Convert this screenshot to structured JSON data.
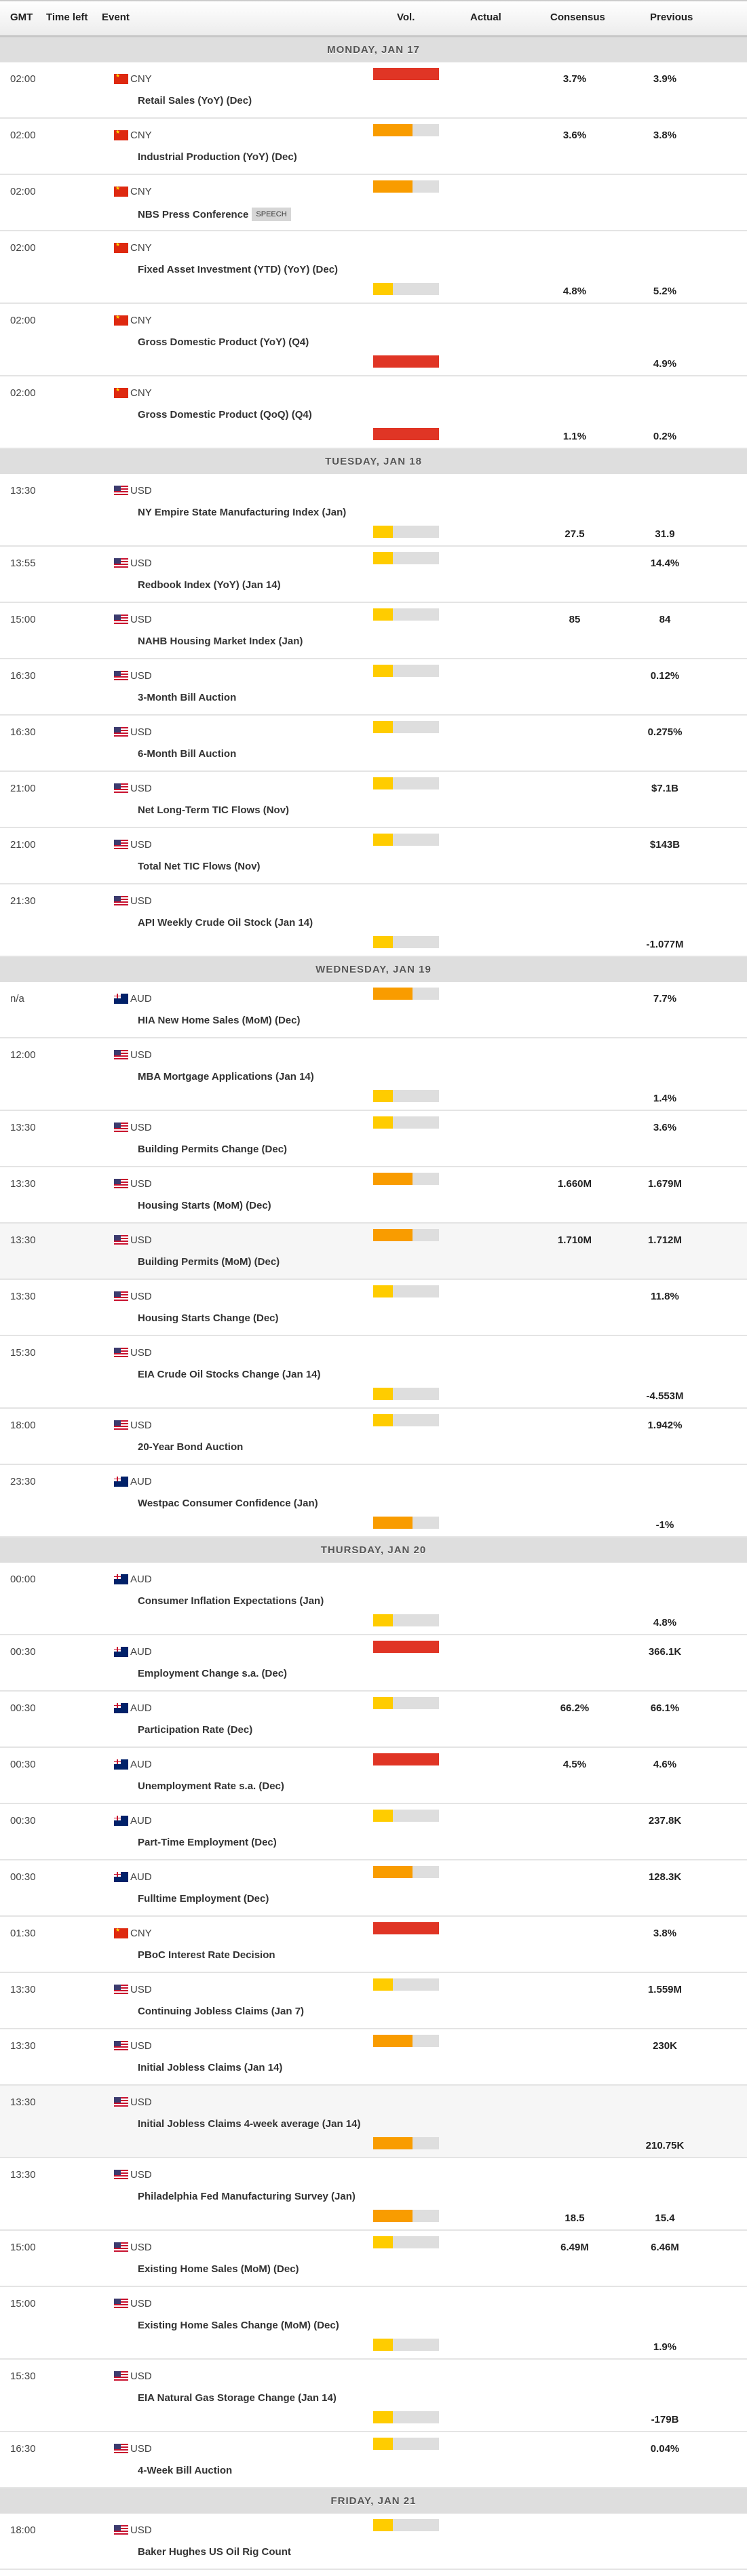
{
  "header": {
    "gmt": "GMT",
    "time_left": "Time left",
    "event": "Event",
    "vol": "Vol.",
    "actual": "Actual",
    "consensus": "Consensus",
    "previous": "Previous"
  },
  "colors": {
    "high": "#e03525",
    "medium": "#f99c00",
    "low": "#ffcc00",
    "track": "#dedede"
  },
  "volatility_levels": {
    "high": 1.0,
    "medium": 0.6,
    "low": 0.3
  },
  "days": [
    {
      "label": "MONDAY, JAN 17",
      "events": [
        {
          "time": "02:00",
          "currency": "CNY",
          "flag": "cny",
          "name": "Retail Sales (YoY) (Dec)",
          "vol": "high",
          "consensus": "3.7%",
          "previous": "3.9%"
        },
        {
          "time": "02:00",
          "currency": "CNY",
          "flag": "cny",
          "name": "Industrial Production (YoY) (Dec)",
          "vol": "medium",
          "consensus": "3.6%",
          "previous": "3.8%"
        },
        {
          "time": "02:00",
          "currency": "CNY",
          "flag": "cny",
          "name": "NBS Press Conference",
          "badge": "SPEECH",
          "vol": "medium"
        },
        {
          "time": "02:00",
          "currency": "CNY",
          "flag": "cny",
          "name": "Fixed Asset Investment (YTD) (YoY) (Dec)",
          "vol": "low",
          "consensus": "4.8%",
          "previous": "5.2%",
          "tall": true
        },
        {
          "time": "02:00",
          "currency": "CNY",
          "flag": "cny",
          "name": "Gross Domestic Product (YoY) (Q4)",
          "vol": "high",
          "previous": "4.9%",
          "tall": true
        },
        {
          "time": "02:00",
          "currency": "CNY",
          "flag": "cny",
          "name": "Gross Domestic Product (QoQ) (Q4)",
          "vol": "high",
          "consensus": "1.1%",
          "previous": "0.2%",
          "tall": true
        }
      ]
    },
    {
      "label": "TUESDAY, JAN 18",
      "events": [
        {
          "time": "13:30",
          "currency": "USD",
          "flag": "usd",
          "name": "NY Empire State Manufacturing Index (Jan)",
          "vol": "low",
          "consensus": "27.5",
          "previous": "31.9",
          "tall": true
        },
        {
          "time": "13:55",
          "currency": "USD",
          "flag": "usd",
          "name": "Redbook Index (YoY) (Jan 14)",
          "vol": "low",
          "previous": "14.4%"
        },
        {
          "time": "15:00",
          "currency": "USD",
          "flag": "usd",
          "name": "NAHB Housing Market Index (Jan)",
          "vol": "low",
          "consensus": "85",
          "previous": "84"
        },
        {
          "time": "16:30",
          "currency": "USD",
          "flag": "usd",
          "name": "3-Month Bill Auction",
          "vol": "low",
          "previous": "0.12%"
        },
        {
          "time": "16:30",
          "currency": "USD",
          "flag": "usd",
          "name": "6-Month Bill Auction",
          "vol": "low",
          "previous": "0.275%"
        },
        {
          "time": "21:00",
          "currency": "USD",
          "flag": "usd",
          "name": "Net Long-Term TIC Flows (Nov)",
          "vol": "low",
          "previous": "$7.1B"
        },
        {
          "time": "21:00",
          "currency": "USD",
          "flag": "usd",
          "name": "Total Net TIC Flows (Nov)",
          "vol": "low",
          "previous": "$143B"
        },
        {
          "time": "21:30",
          "currency": "USD",
          "flag": "usd",
          "name": "API Weekly Crude Oil Stock (Jan 14)",
          "vol": "low",
          "previous": "-1.077M",
          "tall": true
        }
      ]
    },
    {
      "label": "WEDNESDAY, JAN 19",
      "events": [
        {
          "time": "n/a",
          "currency": "AUD",
          "flag": "aud",
          "name": "HIA New Home Sales (MoM) (Dec)",
          "vol": "medium",
          "previous": "7.7%"
        },
        {
          "time": "12:00",
          "currency": "USD",
          "flag": "usd",
          "name": "MBA Mortgage Applications (Jan 14)",
          "vol": "low",
          "previous": "1.4%",
          "tall": true
        },
        {
          "time": "13:30",
          "currency": "USD",
          "flag": "usd",
          "name": "Building Permits Change (Dec)",
          "vol": "low",
          "previous": "3.6%"
        },
        {
          "time": "13:30",
          "currency": "USD",
          "flag": "usd",
          "name": "Housing Starts (MoM) (Dec)",
          "vol": "medium",
          "consensus": "1.660M",
          "previous": "1.679M"
        },
        {
          "time": "13:30",
          "currency": "USD",
          "flag": "usd",
          "name": "Building Permits (MoM) (Dec)",
          "vol": "medium",
          "consensus": "1.710M",
          "previous": "1.712M",
          "hl": true
        },
        {
          "time": "13:30",
          "currency": "USD",
          "flag": "usd",
          "name": "Housing Starts Change (Dec)",
          "vol": "low",
          "previous": "11.8%"
        },
        {
          "time": "15:30",
          "currency": "USD",
          "flag": "usd",
          "name": "EIA Crude Oil Stocks Change (Jan 14)",
          "vol": "low",
          "previous": "-4.553M",
          "tall": true
        },
        {
          "time": "18:00",
          "currency": "USD",
          "flag": "usd",
          "name": "20-Year Bond Auction",
          "vol": "low",
          "previous": "1.942%"
        },
        {
          "time": "23:30",
          "currency": "AUD",
          "flag": "aud",
          "name": "Westpac Consumer Confidence (Jan)",
          "vol": "medium",
          "previous": "-1%",
          "tall": true
        }
      ]
    },
    {
      "label": "THURSDAY, JAN 20",
      "events": [
        {
          "time": "00:00",
          "currency": "AUD",
          "flag": "aud",
          "name": "Consumer Inflation Expectations (Jan)",
          "vol": "low",
          "previous": "4.8%",
          "tall": true
        },
        {
          "time": "00:30",
          "currency": "AUD",
          "flag": "aud",
          "name": "Employment Change s.a. (Dec)",
          "vol": "high",
          "previous": "366.1K"
        },
        {
          "time": "00:30",
          "currency": "AUD",
          "flag": "aud",
          "name": "Participation Rate (Dec)",
          "vol": "low",
          "consensus": "66.2%",
          "previous": "66.1%"
        },
        {
          "time": "00:30",
          "currency": "AUD",
          "flag": "aud",
          "name": "Unemployment Rate s.a. (Dec)",
          "vol": "high",
          "consensus": "4.5%",
          "previous": "4.6%"
        },
        {
          "time": "00:30",
          "currency": "AUD",
          "flag": "aud",
          "name": "Part-Time Employment (Dec)",
          "vol": "low",
          "previous": "237.8K"
        },
        {
          "time": "00:30",
          "currency": "AUD",
          "flag": "aud",
          "name": "Fulltime Employment (Dec)",
          "vol": "medium",
          "previous": "128.3K"
        },
        {
          "time": "01:30",
          "currency": "CNY",
          "flag": "cny",
          "name": "PBoC Interest Rate Decision",
          "vol": "high",
          "previous": "3.8%"
        },
        {
          "time": "13:30",
          "currency": "USD",
          "flag": "usd",
          "name": "Continuing Jobless Claims (Jan 7)",
          "vol": "low",
          "previous": "1.559M"
        },
        {
          "time": "13:30",
          "currency": "USD",
          "flag": "usd",
          "name": "Initial Jobless Claims (Jan 14)",
          "vol": "medium",
          "previous": "230K"
        },
        {
          "time": "13:30",
          "currency": "USD",
          "flag": "usd",
          "name": "Initial Jobless Claims 4-week average (Jan 14)",
          "vol": "medium",
          "previous": "210.75K",
          "tall": true,
          "hl": true
        },
        {
          "time": "13:30",
          "currency": "USD",
          "flag": "usd",
          "name": "Philadelphia Fed Manufacturing Survey (Jan)",
          "vol": "medium",
          "consensus": "18.5",
          "previous": "15.4",
          "tall": true
        },
        {
          "time": "15:00",
          "currency": "USD",
          "flag": "usd",
          "name": "Existing Home Sales (MoM) (Dec)",
          "vol": "low",
          "consensus": "6.49M",
          "previous": "6.46M"
        },
        {
          "time": "15:00",
          "currency": "USD",
          "flag": "usd",
          "name": "Existing Home Sales Change (MoM) (Dec)",
          "vol": "low",
          "previous": "1.9%",
          "tall": true
        },
        {
          "time": "15:30",
          "currency": "USD",
          "flag": "usd",
          "name": "EIA Natural Gas Storage Change (Jan 14)",
          "vol": "low",
          "previous": "-179B",
          "tall": true
        },
        {
          "time": "16:30",
          "currency": "USD",
          "flag": "usd",
          "name": "4-Week Bill Auction",
          "vol": "low",
          "previous": "0.04%"
        }
      ]
    },
    {
      "label": "FRIDAY, JAN 21",
      "events": [
        {
          "time": "18:00",
          "currency": "USD",
          "flag": "usd",
          "name": "Baker Hughes US Oil Rig Count",
          "vol": "low"
        }
      ]
    }
  ]
}
